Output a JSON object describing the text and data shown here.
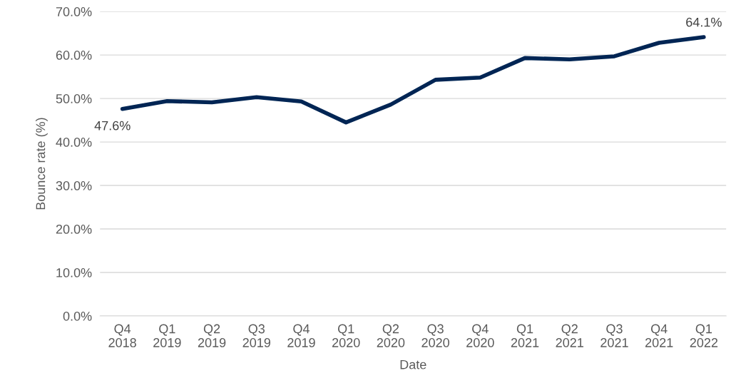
{
  "chart_data": {
    "type": "line",
    "xlabel": "Date",
    "ylabel": "Bounce rate (%)",
    "categories": [
      "Q4\n2018",
      "Q1\n2019",
      "Q2\n2019",
      "Q3\n2019",
      "Q4\n2019",
      "Q1\n2020",
      "Q2\n2020",
      "Q3\n2020",
      "Q4\n2020",
      "Q1\n2021",
      "Q2\n2021",
      "Q3\n2021",
      "Q4\n2021",
      "Q1\n2022"
    ],
    "series": [
      {
        "color": "#002554",
        "values": [
          47.6,
          49.4,
          49.1,
          50.3,
          49.3,
          44.5,
          48.6,
          54.3,
          54.8,
          59.3,
          59.0,
          59.7,
          62.8,
          64.1
        ]
      }
    ],
    "ylim": [
      0,
      70
    ],
    "yticks": [
      {
        "value": 0,
        "label": "0.0%"
      },
      {
        "value": 10,
        "label": "10.0%"
      },
      {
        "value": 20,
        "label": "20.0%"
      },
      {
        "value": 30,
        "label": "30.0%"
      },
      {
        "value": 40,
        "label": "40.0%"
      },
      {
        "value": 50,
        "label": "50.0%"
      },
      {
        "value": 60,
        "label": "60.0%"
      },
      {
        "value": 70,
        "label": "70.0%"
      }
    ],
    "annotations": [
      {
        "text": "47.6%",
        "x": "Q4\n2018",
        "y": 47.6
      },
      {
        "text": "64.1%",
        "x": "Q1\n2022",
        "y": 64.1
      }
    ],
    "grid": "y",
    "legend": false,
    "marker": "none",
    "line_style": "solid"
  }
}
